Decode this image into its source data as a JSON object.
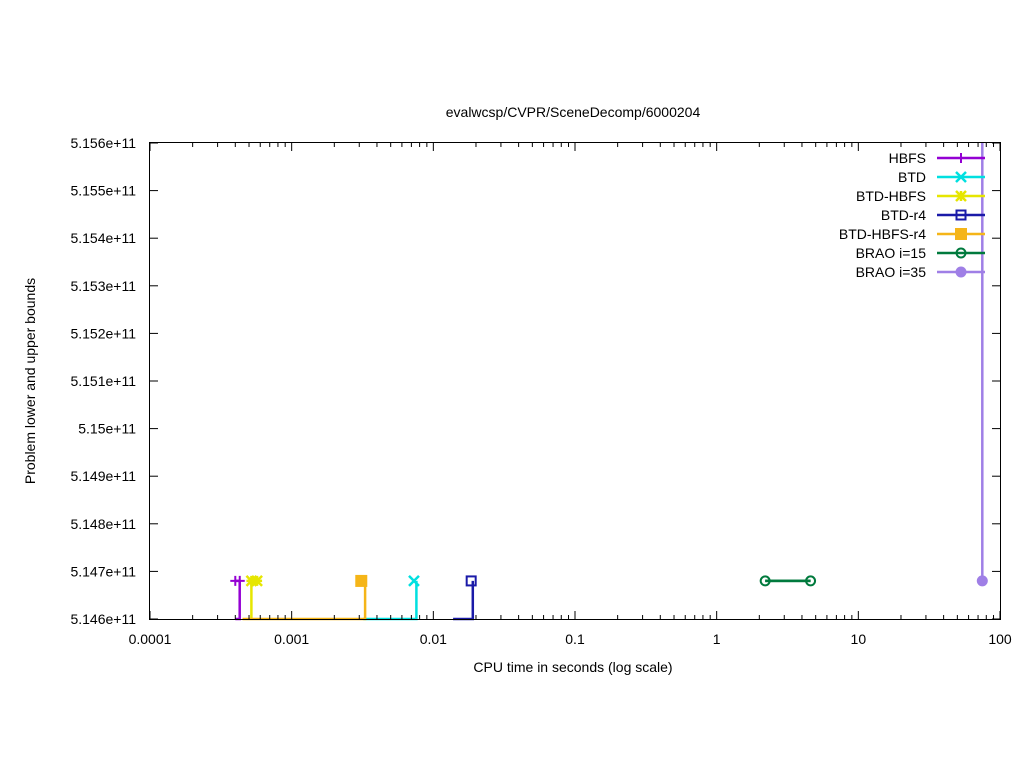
{
  "chart_data": {
    "type": "line",
    "title": "evalwcsp/CVPR/SceneDecomp/6000204",
    "xlabel": "CPU time in seconds (log scale)",
    "ylabel": "Problem lower and upper bounds",
    "xscale": "log",
    "xlim": [
      0.0001,
      100
    ],
    "ylim": [
      514600000000,
      515600000000
    ],
    "x_ticks": [
      {
        "value": 0.0001,
        "label": "0.0001"
      },
      {
        "value": 0.001,
        "label": "0.001"
      },
      {
        "value": 0.01,
        "label": "0.01"
      },
      {
        "value": 0.1,
        "label": "0.1"
      },
      {
        "value": 1,
        "label": "1"
      },
      {
        "value": 10,
        "label": "10"
      },
      {
        "value": 100,
        "label": "100"
      }
    ],
    "y_ticks": [
      {
        "value": 514600000000,
        "label": "5.146e+11"
      },
      {
        "value": 514700000000,
        "label": "5.147e+11"
      },
      {
        "value": 514800000000,
        "label": "5.148e+11"
      },
      {
        "value": 514900000000,
        "label": "5.149e+11"
      },
      {
        "value": 515000000000,
        "label": "5.15e+11"
      },
      {
        "value": 515100000000,
        "label": "5.151e+11"
      },
      {
        "value": 515200000000,
        "label": "5.152e+11"
      },
      {
        "value": 515300000000,
        "label": "5.153e+11"
      },
      {
        "value": 515400000000,
        "label": "5.154e+11"
      },
      {
        "value": 515500000000,
        "label": "5.155e+11"
      },
      {
        "value": 515600000000,
        "label": "5.156e+11"
      }
    ],
    "grid": false,
    "legend_position": "top-right",
    "series": [
      {
        "name": "HBFS",
        "color": "#9400d3",
        "marker": "plus",
        "lower": [
          [
            0.0004,
            514600000000
          ],
          [
            0.00043,
            514600000000
          ],
          [
            0.00043,
            514680000000
          ]
        ],
        "upper": [
          [
            0.0004,
            514680000000
          ],
          [
            0.00043,
            514680000000
          ]
        ]
      },
      {
        "name": "BTD",
        "color": "#00e0e0",
        "marker": "cross",
        "lower": [
          [
            0.0032,
            514600000000
          ],
          [
            0.0076,
            514600000000
          ],
          [
            0.0076,
            514680000000
          ]
        ],
        "upper": [
          [
            0.0073,
            514680000000
          ]
        ]
      },
      {
        "name": "BTD-HBFS",
        "color": "#e6e600",
        "marker": "star",
        "lower": [
          [
            0.00052,
            514600000000
          ],
          [
            0.00052,
            514680000000
          ]
        ],
        "upper": [
          [
            0.00052,
            514680000000
          ],
          [
            0.00057,
            514680000000
          ]
        ]
      },
      {
        "name": "BTD-r4",
        "color": "#1a1aa8",
        "marker": "square-open",
        "lower": [
          [
            0.0138,
            514600000000
          ],
          [
            0.019,
            514600000000
          ],
          [
            0.019,
            514680000000
          ]
        ],
        "upper": [
          [
            0.0185,
            514680000000
          ]
        ]
      },
      {
        "name": "BTD-HBFS-r4",
        "color": "#f5b518",
        "marker": "square-filled",
        "lower": [
          [
            0.00045,
            514600000000
          ],
          [
            0.0033,
            514600000000
          ],
          [
            0.0033,
            514680000000
          ]
        ],
        "upper": [
          [
            0.0031,
            514680000000
          ]
        ]
      },
      {
        "name": "BRAO i=15",
        "color": "#007a3d",
        "marker": "circle-open",
        "lower": [
          [
            2.2,
            514680000000
          ],
          [
            4.6,
            514680000000
          ]
        ],
        "upper": [
          [
            2.2,
            514680000000
          ],
          [
            4.6,
            514680000000
          ]
        ]
      },
      {
        "name": "BRAO i=35",
        "color": "#9f7fe6",
        "marker": "circle-filled",
        "lower": [
          [
            75,
            514680000000
          ],
          [
            75,
            515600000000
          ]
        ],
        "upper": [
          [
            75,
            514680000000
          ]
        ]
      }
    ]
  }
}
